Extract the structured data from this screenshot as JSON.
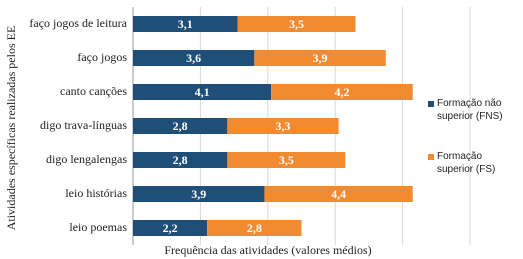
{
  "chart_data": {
    "type": "stacked-bar-horizontal",
    "y_label": "Atividades específicas realizadas pelos EE",
    "x_label": "Frequência das atividades (valores médios)",
    "categories": [
      "faço jogos de leitura",
      "faço jogos",
      "canto canções",
      "digo trava-línguas",
      "digo lengalengas",
      "leio histórias",
      "leio poemas"
    ],
    "series": [
      {
        "name": "Formação não superior (FNS)",
        "color": "#1f4e79",
        "values": [
          3.1,
          3.6,
          4.1,
          2.8,
          2.8,
          3.9,
          2.2
        ],
        "value_labels": [
          "3,1",
          "3,6",
          "4,1",
          "2,8",
          "2,8",
          "3,9",
          "2,2"
        ]
      },
      {
        "name": "Formação superior (FS)",
        "color": "#f28a30",
        "values": [
          3.5,
          3.9,
          4.2,
          3.3,
          3.5,
          4.4,
          2.8
        ],
        "value_labels": [
          "3,5",
          "3,9",
          "4,2",
          "3,3",
          "3,5",
          "4,4",
          "2,8"
        ]
      }
    ],
    "xlim": [
      0,
      10
    ],
    "gridlines": [
      0,
      2,
      4,
      6,
      8,
      10
    ],
    "grid": true,
    "legend": "right"
  }
}
